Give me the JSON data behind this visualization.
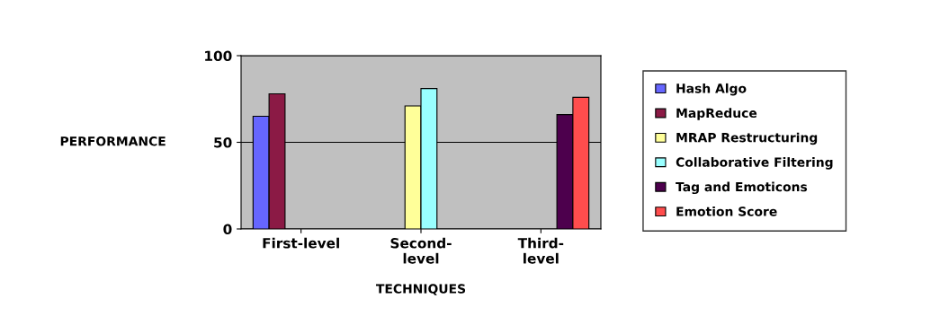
{
  "chart_data": {
    "type": "bar",
    "xlabel": "TECHNIQUES",
    "ylabel": "PERFORMANCE",
    "categories": [
      "First-level",
      "Second-\nlevel",
      "Third-\nlevel"
    ],
    "series": [
      {
        "name": "Hash Algo",
        "color": "#6666ff",
        "values": [
          65,
          null,
          null
        ]
      },
      {
        "name": "MapReduce",
        "color": "#8b1a45",
        "values": [
          78,
          null,
          null
        ]
      },
      {
        "name": "MRAP Restructuring",
        "color": "#ffff99",
        "values": [
          null,
          71,
          null
        ]
      },
      {
        "name": "Collaborative Filtering",
        "color": "#99ffff",
        "values": [
          null,
          81,
          null
        ]
      },
      {
        "name": "Tag and Emoticons",
        "color": "#4d004d",
        "values": [
          null,
          null,
          66
        ]
      },
      {
        "name": "Emotion Score",
        "color": "#ff4d4d",
        "values": [
          null,
          null,
          76
        ]
      }
    ],
    "ylim": [
      0,
      100
    ],
    "yticks": [
      0,
      50,
      100
    ],
    "grid": "y",
    "legend": "right"
  }
}
